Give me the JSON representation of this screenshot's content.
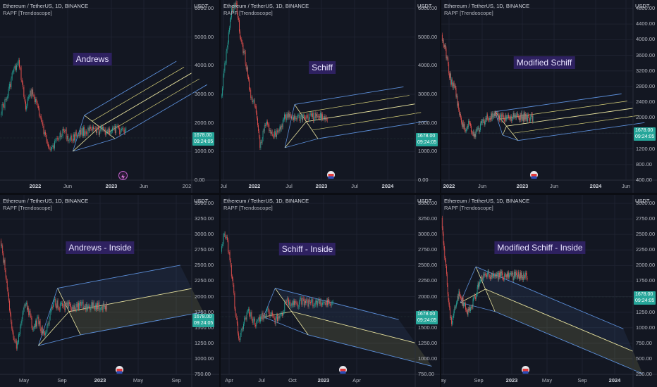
{
  "common": {
    "symbol_line": "Ethereum / TetherUS, 1D, BINANCE",
    "indicator_line": "RAPF [Trendoscope]",
    "currency": "USDT",
    "price_badge": "1678.00",
    "time_badge": "09:24:05"
  },
  "colors": {
    "background": "#131722",
    "up_candle": "#26a69a",
    "down_candle": "#ef5350",
    "median_line": "#e9e4a0",
    "outer_line": "#5b8ed8",
    "inner_line": "#d8d27a",
    "badge": "#26a69a",
    "label_bg": "#2e2160"
  },
  "panels": [
    {
      "label": "Andrews",
      "y_ticks": [
        "6000.00",
        "5000.00",
        "4000.00",
        "3000.00",
        "2000.00",
        "1000.00",
        "0.00"
      ],
      "x_ticks": [
        "2022",
        "Jun",
        "2023",
        "Jun",
        "202"
      ],
      "bold_x_ticks": [
        "2022",
        "2023"
      ],
      "logo": "lightning-icon"
    },
    {
      "label": "Schiff",
      "y_ticks": [
        "6000.00",
        "5000.00",
        "4000.00",
        "3000.00",
        "2000.00",
        "1000.00",
        "0.00"
      ],
      "x_ticks": [
        "Jul",
        "2022",
        "Jul",
        "2023",
        "Jul",
        "2024"
      ],
      "bold_x_ticks": [
        "2022",
        "2023",
        "2024"
      ],
      "logo": "flag-icon"
    },
    {
      "label": "Modified Schiff",
      "y_ticks": [
        "4800.00",
        "4400.00",
        "4000.00",
        "3600.00",
        "3200.00",
        "2800.00",
        "2400.00",
        "2000.00",
        "1600.00",
        "1200.00",
        "800.00",
        "400.00"
      ],
      "x_ticks": [
        "2022",
        "Jun",
        "2023",
        "Jun",
        "2024",
        "Jun"
      ],
      "bold_x_ticks": [
        "2022",
        "2023",
        "2024"
      ],
      "logo": "flag-icon"
    },
    {
      "label": "Andrews - Inside",
      "y_ticks": [
        "3500.00",
        "3250.00",
        "3000.00",
        "2750.00",
        "2500.00",
        "2250.00",
        "2000.00",
        "1750.00",
        "1500.00",
        "1250.00",
        "1000.00",
        "750.00"
      ],
      "x_ticks": [
        "May",
        "Sep",
        "2023",
        "May",
        "Sep"
      ],
      "bold_x_ticks": [
        "2023"
      ],
      "logo": "flag-icon"
    },
    {
      "label": "Schiff - Inside",
      "y_ticks": [
        "3500.00",
        "3250.00",
        "3000.00",
        "2750.00",
        "2500.00",
        "2250.00",
        "2000.00",
        "1750.00",
        "1500.00",
        "1250.00",
        "1000.00",
        "750.00"
      ],
      "x_ticks": [
        "Apr",
        "Jul",
        "Oct",
        "2023",
        "Apr"
      ],
      "bold_x_ticks": [
        "2023"
      ],
      "logo": "flag-icon"
    },
    {
      "label": "Modified Schiff - Inside",
      "y_ticks": [
        "3000.00",
        "2750.00",
        "2500.00",
        "2250.00",
        "2000.00",
        "1750.00",
        "1500.00",
        "1250.00",
        "1000.00",
        "750.00",
        "500.00",
        "250.00"
      ],
      "x_ticks": [
        "ay",
        "Sep",
        "2023",
        "May",
        "Sep",
        "2024"
      ],
      "bold_x_ticks": [
        "2023",
        "2024"
      ],
      "logo": "flag-icon"
    }
  ]
}
